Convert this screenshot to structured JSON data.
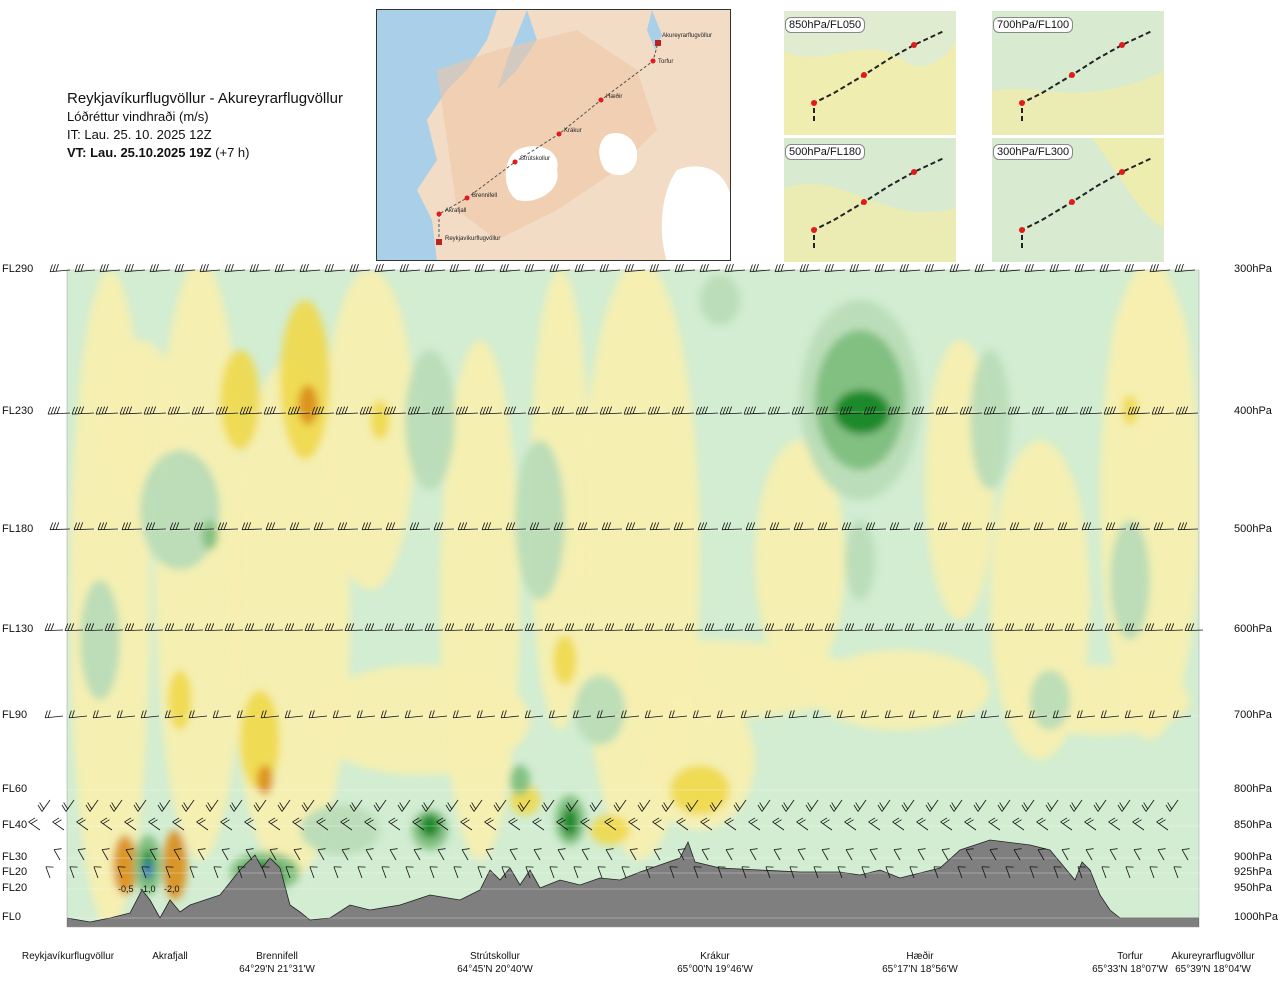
{
  "title": {
    "route": "Reykjavíkurflugvöllur - Akureyrarflugvöllur",
    "parameter": "Lóðréttur vindhraði (m/s)",
    "issue_time": "IT: Lau. 25. 10. 2025 12Z",
    "valid_time": "VT: Lau. 25.10.2025 19Z",
    "offset": "(+7 h)"
  },
  "map": {
    "labels": [
      "Akureyrarflugvöllur",
      "Torfur",
      "Hæðir",
      "Krákur",
      "Strútskollur",
      "Brennifell",
      "Akrafjall",
      "Reykjavíkurflugvöllur"
    ]
  },
  "mini_maps": [
    {
      "label": "850hPa/FL050"
    },
    {
      "label": "700hPa/FL100"
    },
    {
      "label": "500hPa/FL180"
    },
    {
      "label": "300hPa/FL300"
    }
  ],
  "chart_data": {
    "type": "heatmap",
    "title": "Lóðréttur vindhraði (m/s)",
    "left_axis_labels": [
      "FL290",
      "FL230",
      "FL180",
      "FL130",
      "FL90",
      "FL60",
      "FL40",
      "FL30",
      "FL20",
      "FL20",
      "FL0"
    ],
    "right_axis_labels": [
      "300hPa",
      "400hPa",
      "500hPa",
      "600hPa",
      "700hPa",
      "800hPa",
      "850hPa",
      "900hPa",
      "925hPa",
      "950hPa",
      "1000hPa"
    ],
    "pressure_levels": [
      300,
      400,
      500,
      600,
      700,
      800,
      850,
      900,
      925,
      950,
      1000
    ],
    "waypoints": [
      {
        "name": "Reykjavíkurflugvöllur",
        "coord": ""
      },
      {
        "name": "Akrafjall",
        "coord": ""
      },
      {
        "name": "Brennifell",
        "coord": "64°29'N 21°31'W"
      },
      {
        "name": "Strútskollur",
        "coord": "64°45'N 20°40'W"
      },
      {
        "name": "Krákur",
        "coord": "65°00'N 19°46'W"
      },
      {
        "name": "Hæðir",
        "coord": "65°17'N 18°56'W"
      },
      {
        "name": "Torfur",
        "coord": "65°33'N 18°07'W"
      },
      {
        "name": "Akureyrarflugvöllur",
        "coord": "65°39'N 18°04'W"
      }
    ],
    "annotations": [
      "-0,5",
      "-1,0",
      "-2,0"
    ],
    "colors": {
      "strong_down": "#1f8a2a",
      "down": "#7fbf80",
      "weak_down": "#b9dcb7",
      "neutral": "#d2edd2",
      "weak_up": "#f7efb0",
      "up": "#f0d84a",
      "strong_up": "#d98c1a",
      "terrain": "#7f7f7f"
    }
  }
}
